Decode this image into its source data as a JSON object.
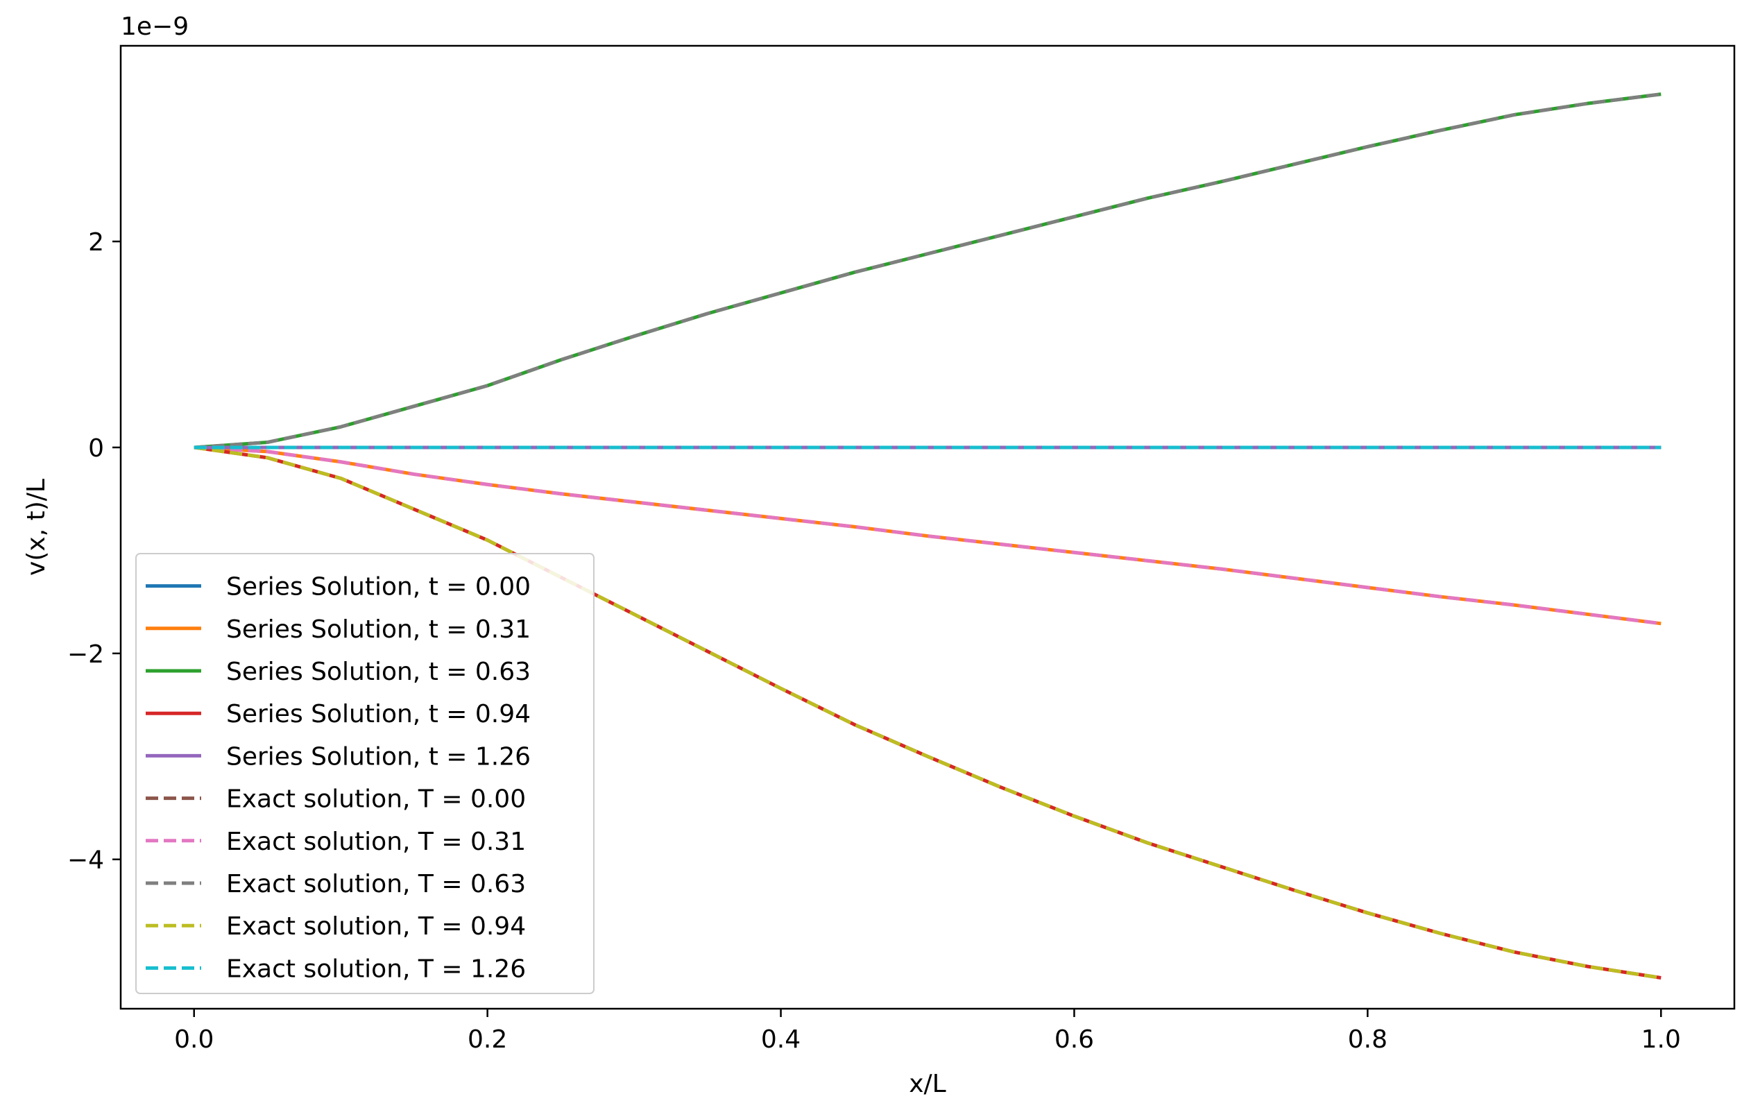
{
  "chart_data": {
    "type": "line",
    "title": "",
    "xlabel": "x/L",
    "ylabel": "v(x, t)/L",
    "y_offset_label": "1e−9",
    "xlim": [
      -0.05,
      1.05
    ],
    "ylim": [
      -5.45,
      3.9
    ],
    "x_ticks": [
      0.0,
      0.2,
      0.4,
      0.6,
      0.8,
      1.0
    ],
    "x_tick_labels": [
      "0.0",
      "0.2",
      "0.4",
      "0.6",
      "0.8",
      "1.0"
    ],
    "y_ticks": [
      -4,
      -2,
      0,
      2
    ],
    "y_tick_labels": [
      "−4",
      "−2",
      "0",
      "2"
    ],
    "y_scale_note": "values in units of 1e-9",
    "grid": false,
    "legend_position": "lower-left",
    "x": [
      0.0,
      0.05,
      0.1,
      0.15,
      0.2,
      0.25,
      0.3,
      0.35,
      0.4,
      0.45,
      0.5,
      0.55,
      0.6,
      0.65,
      0.7,
      0.75,
      0.8,
      0.85,
      0.9,
      0.95,
      1.0
    ],
    "series": [
      {
        "name": "Series Solution, t = 0.00",
        "color": "#1f77b4",
        "dash": "solid",
        "values": [
          0,
          0,
          0,
          0,
          0,
          0,
          0,
          0,
          0,
          0,
          0,
          0,
          0,
          0,
          0,
          0,
          0,
          0,
          0,
          0,
          0
        ]
      },
      {
        "name": "Series Solution, t = 0.31",
        "color": "#ff7f0e",
        "dash": "solid",
        "values": [
          0,
          -0.04,
          -0.14,
          -0.26,
          -0.36,
          -0.45,
          -0.53,
          -0.61,
          -0.69,
          -0.77,
          -0.86,
          -0.94,
          -1.02,
          -1.1,
          -1.18,
          -1.27,
          -1.36,
          -1.45,
          -1.53,
          -1.62,
          -1.71
        ]
      },
      {
        "name": "Series Solution, t = 0.63",
        "color": "#2ca02c",
        "dash": "solid",
        "values": [
          0,
          0.05,
          0.2,
          0.4,
          0.6,
          0.85,
          1.08,
          1.3,
          1.5,
          1.7,
          1.88,
          2.06,
          2.24,
          2.42,
          2.58,
          2.75,
          2.92,
          3.08,
          3.23,
          3.34,
          3.43
        ]
      },
      {
        "name": "Series Solution, t = 0.94",
        "color": "#d62728",
        "dash": "solid",
        "values": [
          0,
          -0.1,
          -0.3,
          -0.6,
          -0.9,
          -1.26,
          -1.62,
          -1.98,
          -2.34,
          -2.69,
          -3.0,
          -3.3,
          -3.58,
          -3.84,
          -4.07,
          -4.3,
          -4.52,
          -4.72,
          -4.9,
          -5.04,
          -5.15
        ]
      },
      {
        "name": "Series Solution, t = 1.26",
        "color": "#9467bd",
        "dash": "solid",
        "values": [
          0,
          0,
          0,
          0,
          0,
          0,
          0,
          0,
          0,
          0,
          0,
          0,
          0,
          0,
          0,
          0,
          0,
          0,
          0,
          0,
          0
        ]
      },
      {
        "name": "Exact solution, T = 0.00",
        "color": "#8c564b",
        "dash": "dashed",
        "values": [
          0,
          0,
          0,
          0,
          0,
          0,
          0,
          0,
          0,
          0,
          0,
          0,
          0,
          0,
          0,
          0,
          0,
          0,
          0,
          0,
          0
        ]
      },
      {
        "name": "Exact solution, T = 0.31",
        "color": "#e377c2",
        "dash": "dashed",
        "values": [
          0,
          -0.04,
          -0.14,
          -0.26,
          -0.36,
          -0.45,
          -0.53,
          -0.61,
          -0.69,
          -0.77,
          -0.86,
          -0.94,
          -1.02,
          -1.1,
          -1.18,
          -1.27,
          -1.36,
          -1.45,
          -1.53,
          -1.62,
          -1.71
        ]
      },
      {
        "name": "Exact solution, T = 0.63",
        "color": "#7f7f7f",
        "dash": "dashed",
        "values": [
          0,
          0.05,
          0.2,
          0.4,
          0.6,
          0.85,
          1.08,
          1.3,
          1.5,
          1.7,
          1.88,
          2.06,
          2.24,
          2.42,
          2.58,
          2.75,
          2.92,
          3.08,
          3.23,
          3.34,
          3.43
        ]
      },
      {
        "name": "Exact solution, T = 0.94",
        "color": "#bcbd22",
        "dash": "dashed",
        "values": [
          0,
          -0.1,
          -0.3,
          -0.6,
          -0.9,
          -1.26,
          -1.62,
          -1.98,
          -2.34,
          -2.69,
          -3.0,
          -3.3,
          -3.58,
          -3.84,
          -4.07,
          -4.3,
          -4.52,
          -4.72,
          -4.9,
          -5.04,
          -5.15
        ]
      },
      {
        "name": "Exact solution, T = 1.26",
        "color": "#17becf",
        "dash": "dashed",
        "values": [
          0,
          0,
          0,
          0,
          0,
          0,
          0,
          0,
          0,
          0,
          0,
          0,
          0,
          0,
          0,
          0,
          0,
          0,
          0,
          0,
          0
        ]
      }
    ]
  }
}
